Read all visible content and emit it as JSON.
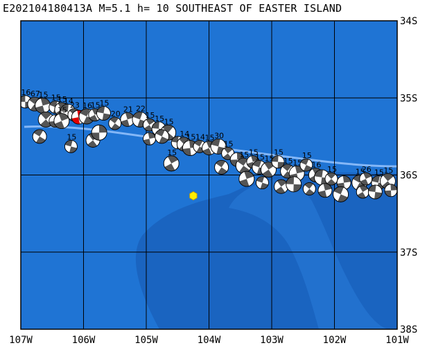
{
  "title": "E202104180413A M=5.1 h= 10 SOUTHEAST OF EASTER ISLAND",
  "colors": {
    "ocean": "#1f74d4",
    "deep": "#1a64c0",
    "ridge": "#4a93e0",
    "grid": "#000000",
    "epicenter": "#ffee00",
    "beachball_dark": "#555555",
    "highlight": "#e00000"
  },
  "map": {
    "lon_range": [
      -107,
      -101
    ],
    "lat_range": [
      -38,
      -34
    ],
    "lon_labels": [
      "107W",
      "106W",
      "105W",
      "104W",
      "103W",
      "102W",
      "101W"
    ],
    "lat_labels": [
      "34S",
      "35S",
      "36S",
      "37S",
      "38S"
    ],
    "epicenter": {
      "lon": -104.25,
      "lat": -36.27,
      "icon": "hexagon-epicenter-icon"
    }
  },
  "events": [
    {
      "lon": -106.93,
      "lat": -35.05,
      "label": "16"
    },
    {
      "lon": -106.78,
      "lat": -35.08,
      "label": "67"
    },
    {
      "lon": -106.65,
      "lat": -35.1,
      "label": "15"
    },
    {
      "lon": -106.45,
      "lat": -35.12,
      "label": "15"
    },
    {
      "lon": -106.35,
      "lat": -35.15,
      "label": "15"
    },
    {
      "lon": -106.25,
      "lat": -35.18,
      "label": "14"
    },
    {
      "lon": -106.15,
      "lat": -35.22,
      "label": "23"
    },
    {
      "lon": -106.08,
      "lat": -35.25,
      "label": "",
      "highlight": true
    },
    {
      "lon": -105.95,
      "lat": -35.24,
      "label": "16"
    },
    {
      "lon": -105.82,
      "lat": -35.22,
      "label": "15"
    },
    {
      "lon": -105.68,
      "lat": -35.2,
      "label": "15"
    },
    {
      "lon": -106.6,
      "lat": -35.28,
      "label": ""
    },
    {
      "lon": -106.45,
      "lat": -35.3,
      "label": ""
    },
    {
      "lon": -106.7,
      "lat": -35.5,
      "label": ""
    },
    {
      "lon": -106.35,
      "lat": -35.3,
      "label": "15"
    },
    {
      "lon": -106.2,
      "lat": -35.63,
      "label": "15"
    },
    {
      "lon": -105.85,
      "lat": -35.55,
      "label": ""
    },
    {
      "lon": -105.75,
      "lat": -35.45,
      "label": ""
    },
    {
      "lon": -105.5,
      "lat": -35.33,
      "label": "20"
    },
    {
      "lon": -105.3,
      "lat": -35.28,
      "label": "21"
    },
    {
      "lon": -105.1,
      "lat": -35.28,
      "label": "22"
    },
    {
      "lon": -104.95,
      "lat": -35.35,
      "label": "15"
    },
    {
      "lon": -104.8,
      "lat": -35.4,
      "label": "15"
    },
    {
      "lon": -104.65,
      "lat": -35.45,
      "label": "15"
    },
    {
      "lon": -104.95,
      "lat": -35.53,
      "label": ""
    },
    {
      "lon": -104.75,
      "lat": -35.5,
      "label": ""
    },
    {
      "lon": -104.6,
      "lat": -35.85,
      "label": "15"
    },
    {
      "lon": -104.5,
      "lat": -35.58,
      "label": ""
    },
    {
      "lon": -104.4,
      "lat": -35.6,
      "label": "14"
    },
    {
      "lon": -104.3,
      "lat": -35.65,
      "label": "15"
    },
    {
      "lon": -104.15,
      "lat": -35.63,
      "label": "14"
    },
    {
      "lon": -104.0,
      "lat": -35.65,
      "label": "15"
    },
    {
      "lon": -103.85,
      "lat": -35.63,
      "label": "30"
    },
    {
      "lon": -103.7,
      "lat": -35.72,
      "label": "15"
    },
    {
      "lon": -103.55,
      "lat": -35.8,
      "label": ""
    },
    {
      "lon": -103.45,
      "lat": -35.88,
      "label": "15"
    },
    {
      "lon": -103.3,
      "lat": -35.83,
      "label": "15"
    },
    {
      "lon": -103.2,
      "lat": -35.9,
      "label": "15"
    },
    {
      "lon": -103.05,
      "lat": -35.93,
      "label": "15"
    },
    {
      "lon": -102.9,
      "lat": -35.83,
      "label": "15"
    },
    {
      "lon": -102.75,
      "lat": -35.95,
      "label": "15"
    },
    {
      "lon": -102.6,
      "lat": -35.98,
      "label": "15"
    },
    {
      "lon": -102.45,
      "lat": -35.87,
      "label": "15"
    },
    {
      "lon": -102.3,
      "lat": -36.0,
      "label": "16"
    },
    {
      "lon": -102.2,
      "lat": -36.03,
      "label": ""
    },
    {
      "lon": -102.05,
      "lat": -36.05,
      "label": "15"
    },
    {
      "lon": -101.85,
      "lat": -36.1,
      "label": ""
    },
    {
      "lon": -101.6,
      "lat": -36.1,
      "label": "15"
    },
    {
      "lon": -101.5,
      "lat": -36.05,
      "label": "26"
    },
    {
      "lon": -101.3,
      "lat": -36.1,
      "label": "15"
    },
    {
      "lon": -101.15,
      "lat": -36.08,
      "label": "15"
    },
    {
      "lon": -101.1,
      "lat": -36.2,
      "label": ""
    },
    {
      "lon": -103.8,
      "lat": -35.9,
      "label": ""
    },
    {
      "lon": -103.4,
      "lat": -36.05,
      "label": ""
    },
    {
      "lon": -103.15,
      "lat": -36.1,
      "label": ""
    },
    {
      "lon": -102.85,
      "lat": -36.15,
      "label": ""
    },
    {
      "lon": -102.65,
      "lat": -36.12,
      "label": ""
    },
    {
      "lon": -102.4,
      "lat": -36.18,
      "label": ""
    },
    {
      "lon": -102.15,
      "lat": -36.2,
      "label": ""
    },
    {
      "lon": -101.9,
      "lat": -36.25,
      "label": ""
    },
    {
      "lon": -101.55,
      "lat": -36.22,
      "label": ""
    },
    {
      "lon": -101.35,
      "lat": -36.22,
      "label": ""
    }
  ]
}
